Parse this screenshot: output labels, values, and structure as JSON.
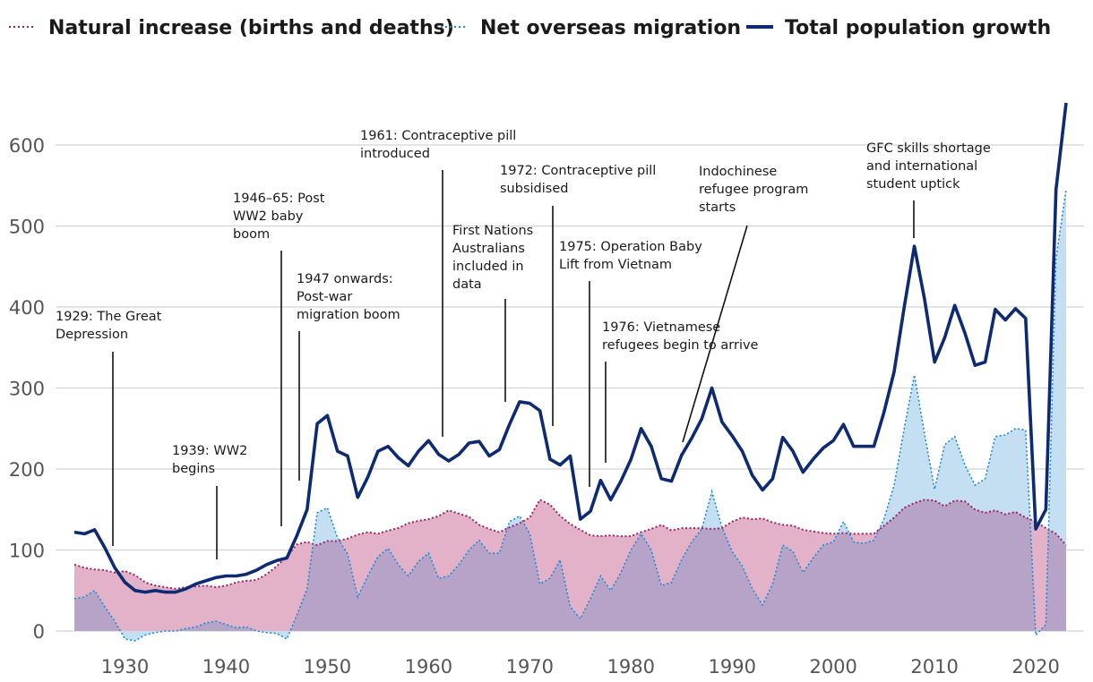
{
  "chart_data": {
    "type": "area",
    "title": "",
    "xlabel": "",
    "ylabel": "",
    "xlim": [
      1925,
      2023
    ],
    "ylim": [
      -20,
      680
    ],
    "x_ticks": [
      1930,
      1940,
      1950,
      1960,
      1970,
      1980,
      1990,
      2000,
      2010,
      2020
    ],
    "y_ticks": [
      0,
      100,
      200,
      300,
      400,
      500,
      600
    ],
    "legend": {
      "placement": "top",
      "items": [
        {
          "label": "Natural increase (births and deaths)",
          "style": "dotted",
          "color": "#9b2362"
        },
        {
          "label": "Net overseas migration",
          "style": "dotted",
          "color": "#1b8ad3"
        },
        {
          "label": "Total population growth",
          "style": "solid",
          "color": "#0d2a72"
        }
      ]
    },
    "colors": {
      "natural_fill": "#e3b2c9",
      "natural_line": "#9b2362",
      "migration_fill": "#c4def2",
      "migration_line": "#1b8ad3",
      "overlap_fill": "#b7a3c8",
      "total_line": "#0d2a72"
    },
    "x": [
      1925,
      1926,
      1927,
      1928,
      1929,
      1930,
      1931,
      1932,
      1933,
      1934,
      1935,
      1936,
      1937,
      1938,
      1939,
      1940,
      1941,
      1942,
      1943,
      1944,
      1945,
      1946,
      1947,
      1948,
      1949,
      1950,
      1951,
      1952,
      1953,
      1954,
      1955,
      1956,
      1957,
      1958,
      1959,
      1960,
      1961,
      1962,
      1963,
      1964,
      1965,
      1966,
      1967,
      1968,
      1969,
      1970,
      1971,
      1972,
      1973,
      1974,
      1975,
      1976,
      1977,
      1978,
      1979,
      1980,
      1981,
      1982,
      1983,
      1984,
      1985,
      1986,
      1987,
      1988,
      1989,
      1990,
      1991,
      1992,
      1993,
      1994,
      1995,
      1996,
      1997,
      1998,
      1999,
      2000,
      2001,
      2002,
      2003,
      2004,
      2005,
      2006,
      2007,
      2008,
      2009,
      2010,
      2011,
      2012,
      2013,
      2014,
      2015,
      2016,
      2017,
      2018,
      2019,
      2020,
      2021,
      2022,
      2023
    ],
    "series": [
      {
        "name": "Natural increase (births and deaths)",
        "values": [
          82,
          78,
          76,
          75,
          72,
          74,
          69,
          60,
          56,
          54,
          52,
          54,
          55,
          56,
          54,
          56,
          60,
          62,
          63,
          70,
          80,
          92,
          107,
          110,
          106,
          111,
          111,
          114,
          119,
          122,
          120,
          124,
          127,
          133,
          136,
          138,
          142,
          149,
          145,
          141,
          131,
          126,
          122,
          128,
          133,
          140,
          162,
          156,
          142,
          132,
          125,
          118,
          117,
          118,
          117,
          117,
          122,
          126,
          131,
          124,
          127,
          127,
          127,
          126,
          127,
          135,
          140,
          138,
          139,
          134,
          131,
          130,
          125,
          123,
          121,
          120,
          121,
          120,
          120,
          120,
          130,
          140,
          152,
          158,
          162,
          161,
          154,
          161,
          160,
          150,
          146,
          149,
          144,
          147,
          140,
          135,
          127,
          120,
          106
        ]
      },
      {
        "name": "Net overseas migration",
        "values": [
          40,
          42,
          50,
          30,
          12,
          -10,
          -12,
          -5,
          -2,
          0,
          0,
          3,
          5,
          10,
          12,
          8,
          4,
          5,
          0,
          -2,
          -3,
          -10,
          20,
          52,
          146,
          152,
          115,
          95,
          42,
          68,
          92,
          102,
          82,
          68,
          86,
          96,
          65,
          68,
          82,
          100,
          112,
          96,
          96,
          135,
          142,
          120,
          58,
          65,
          88,
          30,
          15,
          40,
          68,
          50,
          72,
          100,
          120,
          100,
          56,
          60,
          88,
          110,
          126,
          172,
          128,
          98,
          80,
          52,
          32,
          58,
          106,
          98,
          72,
          90,
          106,
          110,
          135,
          110,
          108,
          112,
          138,
          180,
          250,
          316,
          244,
          175,
          230,
          240,
          205,
          180,
          188,
          240,
          242,
          250,
          248,
          -5,
          8,
          460,
          545
        ]
      },
      {
        "name": "Total population growth",
        "values": [
          122,
          120,
          125,
          103,
          78,
          60,
          50,
          48,
          50,
          48,
          48,
          52,
          58,
          62,
          66,
          68,
          68,
          70,
          75,
          82,
          87,
          90,
          118,
          150,
          256,
          266,
          222,
          216,
          165,
          190,
          222,
          228,
          214,
          204,
          222,
          235,
          218,
          210,
          218,
          232,
          234,
          216,
          224,
          255,
          283,
          281,
          272,
          212,
          205,
          216,
          138,
          148,
          186,
          162,
          185,
          212,
          250,
          228,
          188,
          185,
          217,
          238,
          262,
          300,
          258,
          241,
          222,
          192,
          174,
          188,
          239,
          222,
          196,
          212,
          226,
          235,
          255,
          228,
          228,
          228,
          270,
          320,
          400,
          475,
          410,
          332,
          362,
          402,
          368,
          328,
          332,
          397,
          384,
          398,
          386,
          126,
          150,
          545,
          652
        ]
      }
    ],
    "annotations": [
      {
        "lines": [
          "1929: The Great",
          "Depression"
        ],
        "year": 1929
      },
      {
        "lines": [
          "1939: WW2",
          "begins"
        ],
        "year": 1939
      },
      {
        "lines": [
          "1946–65: Post",
          "WW2 baby",
          "boom"
        ],
        "year": 1946
      },
      {
        "lines": [
          "1947 onwards:",
          "Post-war",
          "migration boom"
        ],
        "year": 1947
      },
      {
        "lines": [
          "1961: Contraceptive pill",
          "introduced"
        ],
        "year": 1961
      },
      {
        "lines": [
          "First Nations",
          "Australians",
          "included in",
          "data"
        ],
        "year": 1967
      },
      {
        "lines": [
          "1972: Contraceptive pill",
          "subsidised"
        ],
        "year": 1972
      },
      {
        "lines": [
          "1975: Operation Baby",
          "Lift from Vietnam"
        ],
        "year": 1975
      },
      {
        "lines": [
          "1976: Vietnamese",
          "refugees begin to arrive"
        ],
        "year": 1976
      },
      {
        "lines": [
          "Indochinese",
          "refugee program",
          "starts"
        ],
        "year": 1985
      },
      {
        "lines": [
          "GFC skills shortage",
          "and international",
          "student uptick"
        ],
        "year": 2008
      }
    ]
  }
}
